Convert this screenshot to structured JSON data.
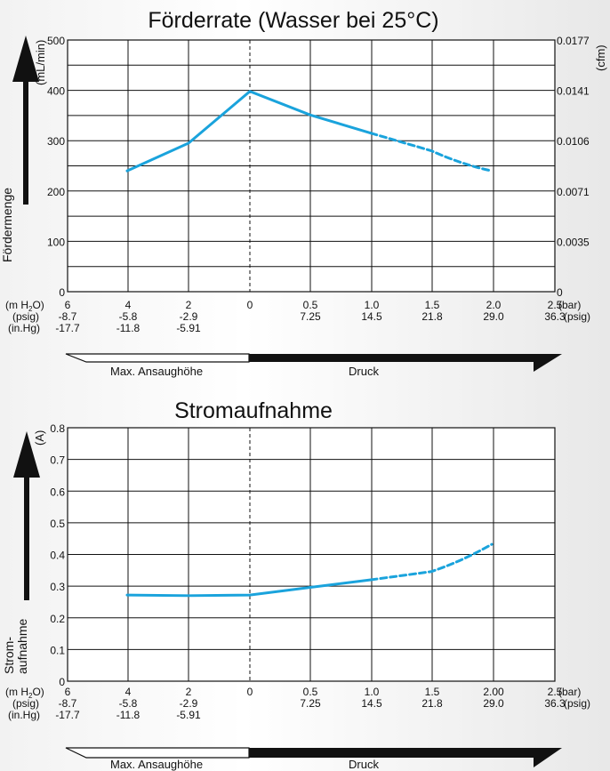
{
  "colors": {
    "curve": "#1aa3dc",
    "ink": "#111111",
    "grid": "#111111"
  },
  "bottom_axis_labels": {
    "mh2o": "(m H2O)",
    "psig": "(psig)",
    "inhg": "(in.Hg)",
    "bar_unit": "(bar)",
    "psig_unit": "(psig)"
  },
  "x_ticks": [
    {
      "bar": "6",
      "psig": "-8.7",
      "inhg": "-17.7"
    },
    {
      "bar": "4",
      "psig": "-5.8",
      "inhg": "-11.8"
    },
    {
      "bar": "2",
      "psig": "-2.9",
      "inhg": "-5.91"
    },
    {
      "bar": "0",
      "psig": "",
      "inhg": ""
    },
    {
      "bar": "0.5",
      "psig": "7.25",
      "inhg": ""
    },
    {
      "bar": "1.0",
      "psig": "14.5",
      "inhg": ""
    },
    {
      "bar": "1.5",
      "psig": "21.8",
      "inhg": ""
    },
    {
      "bar": "2.0",
      "psig": "29.0",
      "inhg": ""
    },
    {
      "bar": "2.5",
      "psig": "36.3",
      "inhg": ""
    }
  ],
  "arrows": {
    "suction_label": "Max. Ansaughöhe",
    "pressure_label": "Druck"
  },
  "chart_data": [
    {
      "type": "line",
      "title": "Förderrate (Wasser bei 25°C)",
      "ylabel": "Fördermenge",
      "yunit_left": "(mL/min)",
      "yunit_right": "(cfm)",
      "ylim": [
        0,
        500
      ],
      "yticks": [
        "0",
        "100",
        "200",
        "300",
        "400",
        "500"
      ],
      "yticks_right": [
        "0",
        "0.0035",
        "0.0071",
        "0.0106",
        "0.0141",
        "0.0177"
      ],
      "grid": true,
      "x_scale": "vacuum 6,4,2,0 m H2O | pressure 0,0.5,1.0,1.5,2.0,2.5 bar",
      "series": [
        {
          "style": "solid",
          "points": [
            [
              "4 m",
              240
            ],
            [
              "2 m",
              295
            ],
            [
              "0",
              398
            ],
            [
              "0.5 bar",
              351
            ],
            [
              "1.0 bar",
              315
            ]
          ]
        },
        {
          "style": "dashed",
          "points": [
            [
              "1.0 bar",
              315
            ],
            [
              "1.5 bar",
              280
            ],
            [
              "2.0 bar",
              240
            ]
          ]
        }
      ]
    },
    {
      "type": "line",
      "title": "Stromaufnahme",
      "ylabel_line1": "Strom-",
      "ylabel_line2": "aufnahme",
      "yunit_left": "(A)",
      "ylim": [
        0,
        0.8
      ],
      "yticks": [
        "0",
        "0.1",
        "0.2",
        "0.3",
        "0.4",
        "0.5",
        "0.6",
        "0.7",
        "0.8"
      ],
      "grid": true,
      "xtick_2bar": "2.00",
      "series": [
        {
          "style": "solid",
          "points": [
            [
              "4 m",
              0.272
            ],
            [
              "2 m",
              0.27
            ],
            [
              "0",
              0.272
            ],
            [
              "0.5 bar",
              0.296
            ],
            [
              "1.0 bar",
              0.32
            ]
          ]
        },
        {
          "style": "dashed",
          "points": [
            [
              "1.0 bar",
              0.32
            ],
            [
              "1.5 bar",
              0.346
            ],
            [
              "2.0 bar",
              0.432
            ]
          ]
        }
      ]
    }
  ]
}
